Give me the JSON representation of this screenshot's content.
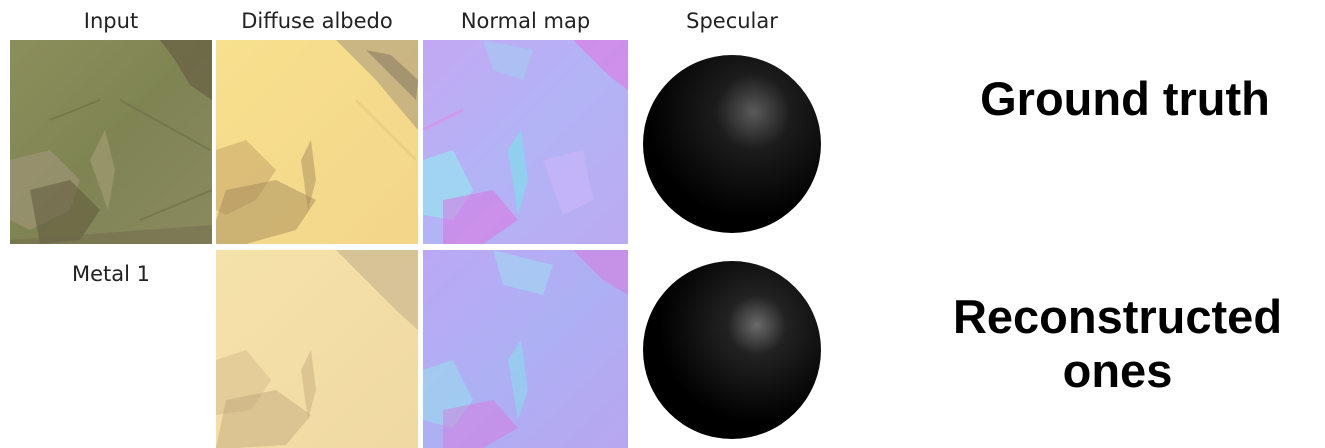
{
  "figure": {
    "columns": [
      "Input",
      "Diffuse albedo",
      "Normal map",
      "Specular"
    ],
    "row_label": "Metal 1",
    "captions": {
      "ground_truth": "Ground truth",
      "reconstructed_line1": "Reconstructed",
      "reconstructed_line2": "ones"
    }
  },
  "colors": {
    "input_base": "#8a8a5a",
    "albedo_base": "#f6dc8c",
    "albedo_reconstructed": "#f4dfa6",
    "normal_base": "#b4a8f2",
    "sphere": "#000000"
  }
}
